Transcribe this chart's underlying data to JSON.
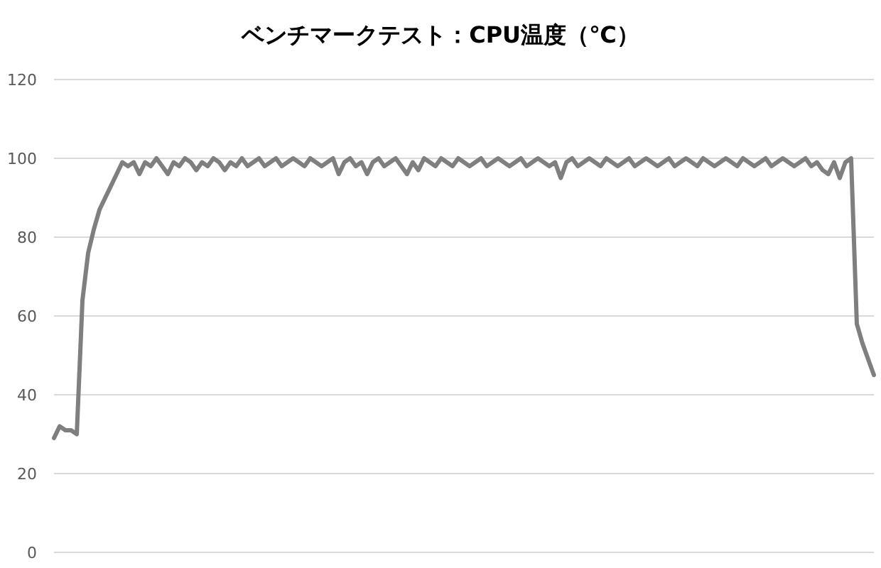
{
  "chart_data": {
    "type": "line",
    "title": "ベンチマークテスト：CPU温度（℃）",
    "categories": [
      null,
      null,
      null,
      null,
      null,
      null,
      null,
      null,
      null,
      null,
      null,
      null,
      null,
      null,
      null,
      null,
      null,
      null,
      null,
      null,
      null,
      null,
      null,
      null,
      null,
      null,
      null,
      null,
      null,
      null,
      null,
      null,
      null,
      null,
      null,
      null,
      null,
      null,
      null,
      null,
      null,
      null,
      null,
      null,
      null,
      null,
      null,
      null,
      null,
      null,
      null,
      null,
      null,
      null,
      null,
      null,
      null,
      null,
      null,
      null,
      null,
      null,
      null,
      null,
      null,
      null,
      null,
      null,
      null,
      null,
      null,
      null,
      null,
      null,
      null,
      null,
      null,
      null,
      null,
      null,
      null,
      null,
      null,
      null,
      null,
      null,
      null,
      null,
      null,
      null,
      null,
      null,
      null,
      null,
      null,
      null,
      null,
      null,
      null,
      null,
      null,
      null,
      null,
      null,
      null,
      null,
      null,
      null,
      null,
      null,
      null,
      null,
      null,
      null,
      null,
      null,
      null,
      null,
      null,
      null,
      null,
      null,
      null,
      null,
      null,
      null,
      null,
      null,
      null,
      null,
      null,
      null,
      null,
      null,
      null,
      null,
      null,
      null,
      null,
      null,
      null,
      null,
      null,
      null,
      null
    ],
    "values": [
      29,
      32,
      31,
      31,
      30,
      64,
      76,
      82,
      87,
      90,
      93,
      96,
      99,
      98,
      99,
      96,
      99,
      98,
      100,
      98,
      96,
      99,
      98,
      100,
      99,
      97,
      99,
      98,
      100,
      99,
      97,
      99,
      98,
      100,
      98,
      99,
      100,
      98,
      99,
      100,
      98,
      99,
      100,
      99,
      98,
      100,
      99,
      98,
      99,
      100,
      96,
      99,
      100,
      98,
      99,
      96,
      99,
      100,
      98,
      99,
      100,
      98,
      96,
      99,
      97,
      100,
      99,
      98,
      100,
      99,
      98,
      100,
      99,
      98,
      99,
      100,
      98,
      99,
      100,
      99,
      98,
      99,
      100,
      98,
      99,
      100,
      99,
      98,
      99,
      95,
      99,
      100,
      98,
      99,
      100,
      99,
      98,
      100,
      99,
      98,
      99,
      100,
      98,
      99,
      100,
      99,
      98,
      99,
      100,
      98,
      99,
      100,
      99,
      98,
      100,
      99,
      98,
      99,
      100,
      99,
      98,
      100,
      99,
      98,
      99,
      100,
      98,
      99,
      100,
      99,
      98,
      99,
      100,
      98,
      99,
      97,
      96,
      99,
      95,
      99,
      100,
      58,
      53,
      49,
      45
    ],
    "color": "#7f7f7f",
    "ylim": [
      0,
      120
    ],
    "yticks": [
      0,
      20,
      40,
      60,
      80,
      100,
      120
    ],
    "grid": "y",
    "tick_labels": "y"
  }
}
